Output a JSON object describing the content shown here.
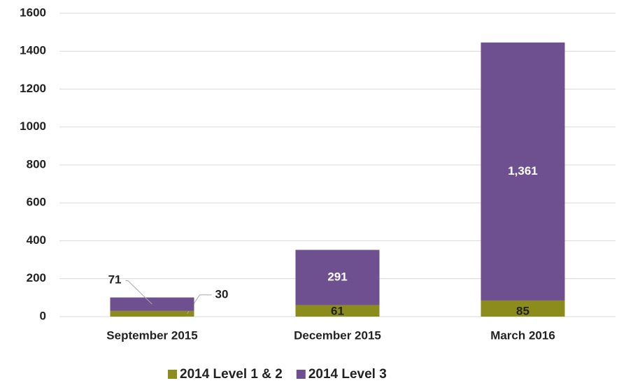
{
  "chart_data": {
    "type": "stacked_bar",
    "categories": [
      "September 2015",
      "December 2015",
      "March 2016"
    ],
    "series": [
      {
        "name": "2014 Level 1 & 2",
        "color": "#8c8c1c",
        "values": [
          30,
          61,
          85
        ]
      },
      {
        "name": "2014 Level 3",
        "color": "#6e4f90",
        "values": [
          71,
          291,
          1361
        ],
        "value_labels": [
          "71",
          "291",
          "1,361"
        ]
      }
    ],
    "ylim": [
      0,
      1600
    ],
    "yticks": [
      0,
      200,
      400,
      600,
      800,
      1000,
      1200,
      1400,
      1600
    ],
    "grid": true,
    "legend": "bottom"
  }
}
